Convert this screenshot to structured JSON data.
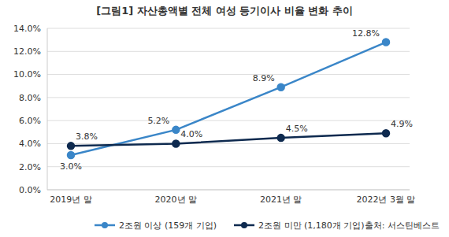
{
  "chart_data": {
    "type": "line",
    "title": "[그림1] 자산총액별 전체 여성 등기이사 비율 변화 추이",
    "categories": [
      "2019년 말",
      "2020년 말",
      "2021년 말",
      "2022년 3월 말"
    ],
    "series": [
      {
        "name": "2조원 이상 (159개 기업)",
        "color": "#3a86c8",
        "marker": "circle",
        "values": [
          3.0,
          5.2,
          8.9,
          12.8
        ],
        "value_labels": [
          "3.0%",
          "5.2%",
          "8.9%",
          "12.8%"
        ]
      },
      {
        "name": "2조원 미만 (1,180개 기업)",
        "color": "#0e2a4f",
        "marker": "circle",
        "values": [
          3.8,
          4.0,
          4.5,
          4.9
        ],
        "value_labels": [
          "3.8%",
          "4.0%",
          "4.5%",
          "4.9%"
        ]
      }
    ],
    "ylim": [
      0,
      14
    ],
    "yticks": [
      {
        "value": 0,
        "label": "0.0%"
      },
      {
        "value": 2,
        "label": "2.0%"
      },
      {
        "value": 4,
        "label": "4.0%"
      },
      {
        "value": 6,
        "label": "6.0%"
      },
      {
        "value": 8,
        "label": "8.0%"
      },
      {
        "value": 10,
        "label": "10.0%"
      },
      {
        "value": 12,
        "label": "12.0%"
      },
      {
        "value": 14,
        "label": "14.0%"
      }
    ],
    "grid": true,
    "data_labels": true,
    "legend": "bottom",
    "annotations": [
      "출처: 서스틴베스트"
    ]
  }
}
